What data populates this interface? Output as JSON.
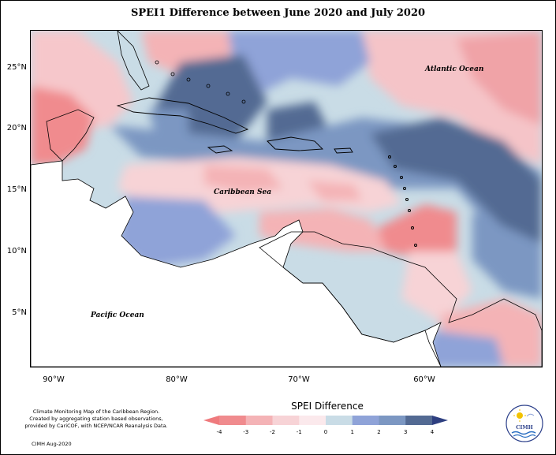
{
  "title": "SPEI1 Difference between June 2020 and July 2020",
  "map": {
    "labels": {
      "atlantic": "Atlantic Ocean",
      "caribbean": "Caribbean Sea",
      "pacific": "Pacific Ocean"
    },
    "lat_ticks": [
      "25°N",
      "20°N",
      "15°N",
      "10°N",
      "5°N"
    ],
    "lon_ticks": [
      "90°W",
      "80°W",
      "70°W",
      "60°W"
    ]
  },
  "legend": {
    "title": "SPEI Difference",
    "ticks": [
      "-4",
      "-3",
      "-2",
      "-1",
      "0",
      "1",
      "2",
      "3",
      "4"
    ],
    "colors": [
      "#f08b8e",
      "#f4b3b6",
      "#f7d3d6",
      "#fbe9ec",
      "#c9dce6",
      "#8fa3d8",
      "#7c97c2",
      "#536a93"
    ],
    "arrow_left_color": "#ef7a7d",
    "arrow_right_color": "#2e3f80"
  },
  "footer": {
    "line1": "Climate Monitoring Map of the Caribbean Region.",
    "line2": "Created by aggregating station based observations,",
    "line3": "provided by CariCOF, with NCEP/NCAR Reanalysis Data.",
    "date": "CIMH Aug-2020"
  },
  "logo": {
    "text": "CIMH",
    "icon": "sun-wave-logo-icon"
  }
}
